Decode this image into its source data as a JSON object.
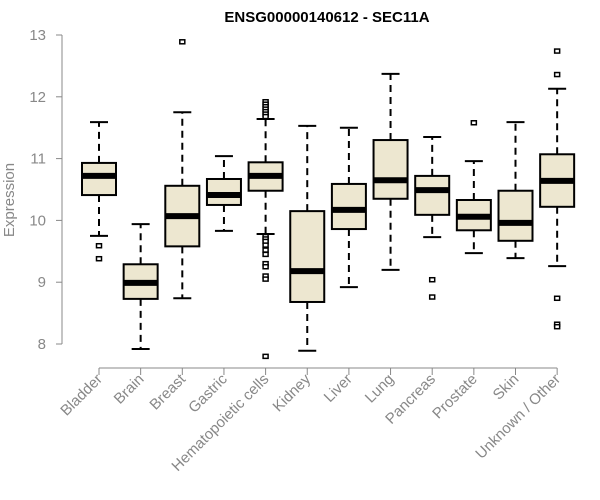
{
  "chart_data": {
    "type": "boxplot",
    "title": "ENSG00000140612 - SEC11A",
    "xlabel": "",
    "ylabel": "Expression",
    "ylim": [
      8,
      13
    ],
    "yticks": [
      8,
      9,
      10,
      11,
      12,
      13
    ],
    "grid": false,
    "box_fill": "#ede7d0",
    "box_stroke": "#000000",
    "axis_color": "#888888",
    "categories": [
      "Bladder",
      "Brain",
      "Breast",
      "Gastric",
      "Hematopoietic cells",
      "Kidney",
      "Liver",
      "Lung",
      "Pancreas",
      "Prostate",
      "Skin",
      "Unknown / Other"
    ],
    "boxes": [
      {
        "name": "Bladder",
        "whisker_low": 9.75,
        "q1": 10.41,
        "median": 10.72,
        "q3": 10.93,
        "whisker_high": 11.59,
        "outliers": [
          9.59,
          9.38
        ]
      },
      {
        "name": "Brain",
        "whisker_low": 7.92,
        "q1": 8.73,
        "median": 8.99,
        "q3": 9.29,
        "whisker_high": 9.94,
        "outliers": []
      },
      {
        "name": "Breast",
        "whisker_low": 8.74,
        "q1": 9.58,
        "median": 10.07,
        "q3": 10.56,
        "whisker_high": 11.75,
        "outliers": [
          12.89
        ]
      },
      {
        "name": "Gastric",
        "whisker_low": 9.83,
        "q1": 10.25,
        "median": 10.41,
        "q3": 10.67,
        "whisker_high": 11.04,
        "outliers": []
      },
      {
        "name": "Hematopoietic cells",
        "whisker_low": 9.78,
        "q1": 10.48,
        "median": 10.72,
        "q3": 10.94,
        "whisker_high": 11.64,
        "outliers": [
          11.92,
          11.88,
          11.84,
          11.8,
          11.76,
          11.72,
          11.68,
          9.74,
          9.7,
          9.66,
          9.6,
          9.52,
          9.45,
          9.3,
          9.25,
          9.1,
          9.05,
          7.8
        ]
      },
      {
        "name": "Kidney",
        "whisker_low": 7.89,
        "q1": 8.68,
        "median": 9.18,
        "q3": 10.15,
        "whisker_high": 11.53,
        "outliers": []
      },
      {
        "name": "Liver",
        "whisker_low": 8.92,
        "q1": 9.86,
        "median": 10.17,
        "q3": 10.59,
        "whisker_high": 11.5,
        "outliers": []
      },
      {
        "name": "Lung",
        "whisker_low": 9.2,
        "q1": 10.35,
        "median": 10.65,
        "q3": 11.3,
        "whisker_high": 12.37,
        "outliers": []
      },
      {
        "name": "Pancreas",
        "whisker_low": 9.73,
        "q1": 10.09,
        "median": 10.49,
        "q3": 10.72,
        "whisker_high": 11.35,
        "outliers": [
          9.04,
          8.76
        ]
      },
      {
        "name": "Prostate",
        "whisker_low": 9.47,
        "q1": 9.84,
        "median": 10.06,
        "q3": 10.33,
        "whisker_high": 10.96,
        "outliers": [
          11.58
        ]
      },
      {
        "name": "Skin",
        "whisker_low": 9.39,
        "q1": 9.67,
        "median": 9.96,
        "q3": 10.48,
        "whisker_high": 11.59,
        "outliers": []
      },
      {
        "name": "Unknown / Other",
        "whisker_low": 9.26,
        "q1": 10.22,
        "median": 10.64,
        "q3": 11.07,
        "whisker_high": 12.13,
        "outliers": [
          12.74,
          12.36,
          8.74,
          8.32,
          8.28
        ]
      }
    ]
  }
}
